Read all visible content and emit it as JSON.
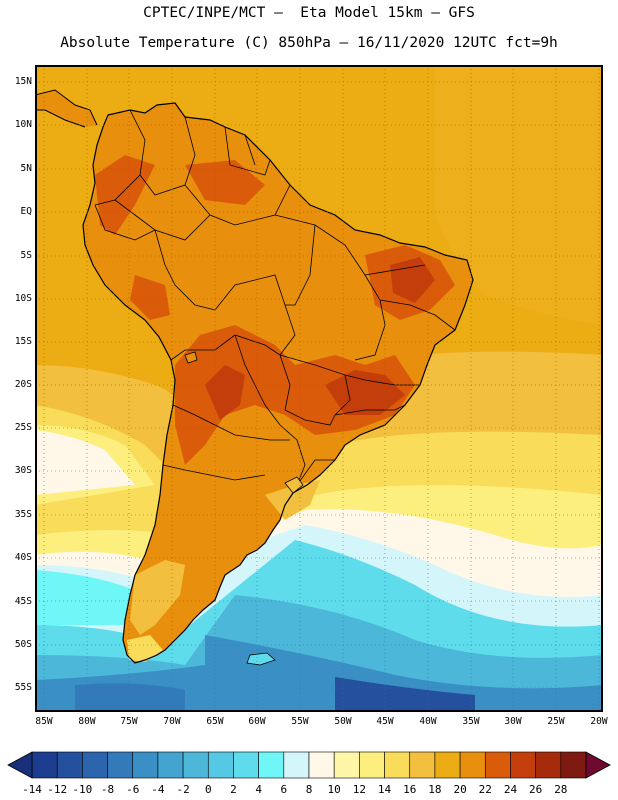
{
  "header": {
    "line1": "CPTEC/INPE/MCT –  Eta Model 15km – GFS",
    "line2": "Absolute Temperature (C) 850hPa – 16/11/2020 12UTC fct=9h"
  },
  "map": {
    "region": "South America",
    "lat_labels": [
      "15N",
      "10N",
      "5N",
      "EQ",
      "5S",
      "10S",
      "15S",
      "20S",
      "25S",
      "30S",
      "35S",
      "40S",
      "45S",
      "50S",
      "55S"
    ],
    "lon_labels": [
      "85W",
      "80W",
      "75W",
      "70W",
      "65W",
      "60W",
      "55W",
      "50W",
      "45W",
      "40W",
      "35W",
      "30W",
      "25W",
      "20W"
    ],
    "grid": "dotted"
  },
  "colorbar": {
    "labels": [
      "-14",
      "-12",
      "-10",
      "-8",
      "-6",
      "-4",
      "-2",
      "0",
      "2",
      "4",
      "6",
      "8",
      "10",
      "12",
      "14",
      "16",
      "18",
      "20",
      "22",
      "24",
      "26",
      "28"
    ],
    "colors": [
      "#1c3d8f",
      "#25509d",
      "#2b65ad",
      "#327ab9",
      "#3a8fc4",
      "#43a5cf",
      "#4db7da",
      "#55c8e3",
      "#5edcec",
      "#6ff6f7",
      "#d4f6fb",
      "#fff8e8",
      "#fff6a8",
      "#fcef7e",
      "#f8dc5a",
      "#f2c03e",
      "#ecac14",
      "#e88f0d",
      "#da5c0a",
      "#c33e0a",
      "#a52b0c",
      "#7e1a12"
    ],
    "under_color": "#1a2f7a",
    "over_color": "#6e0a30"
  }
}
